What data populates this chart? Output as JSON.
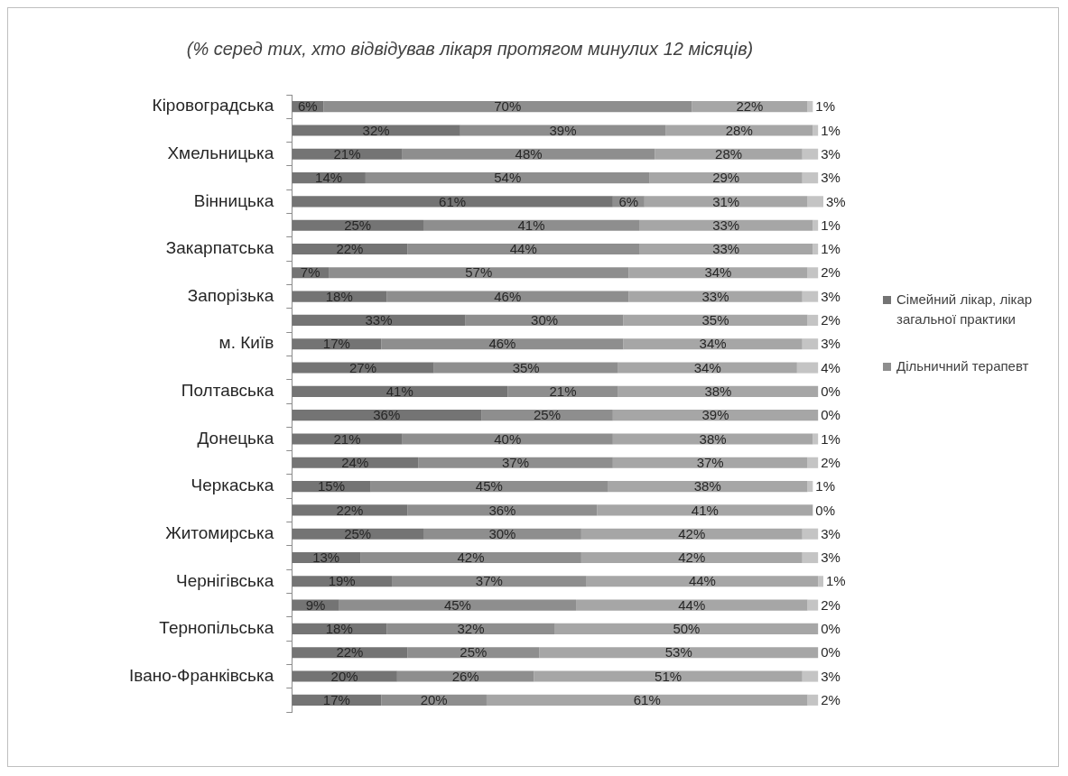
{
  "chart_data": {
    "type": "bar",
    "orientation": "horizontal",
    "stacked": true,
    "title": "(% серед тих, хто відвідував лікаря протягом минулих 12 місяців)",
    "categories": [
      "Кіровоградська",
      null,
      "Хмельницька",
      null,
      "Вінницька",
      null,
      "Закарпатська",
      null,
      "Запорізька",
      null,
      "м. Київ",
      null,
      "Полтавська",
      null,
      "Донецька",
      null,
      "Черкаська",
      null,
      "Житомирська",
      null,
      "Чернігівська",
      null,
      "Тернопільська",
      null,
      "Івано-Франківська",
      null
    ],
    "xlim": [
      0,
      101
    ],
    "tick_labels": "y",
    "grid": false,
    "legend": "right",
    "series": [
      {
        "name": "Сімейний лікар, лікар загальної практики",
        "color": "#747474",
        "values": [
          6,
          32,
          21,
          14,
          61,
          25,
          22,
          7,
          18,
          33,
          17,
          27,
          41,
          36,
          21,
          24,
          15,
          22,
          25,
          13,
          19,
          9,
          18,
          22,
          20,
          17
        ],
        "value_labels": [
          "6%",
          "32%",
          "21%",
          "14%",
          "61%",
          "25%",
          "22%",
          "7%",
          "18%",
          "33%",
          "17%",
          "27%",
          "41%",
          "36%",
          "21%",
          "24%",
          "15%",
          "22%",
          "25%",
          "13%",
          "19%",
          "9%",
          "18%",
          "22%",
          "20%",
          "17%"
        ]
      },
      {
        "name": "Дільничний терапевт",
        "color": "#8e8e8e",
        "values": [
          70,
          39,
          48,
          54,
          6,
          41,
          44,
          57,
          46,
          30,
          46,
          35,
          21,
          25,
          40,
          37,
          45,
          36,
          30,
          42,
          37,
          45,
          32,
          25,
          26,
          20
        ],
        "value_labels": [
          "70%",
          "39%",
          "48%",
          "54%",
          "6%",
          "41%",
          "44%",
          "57%",
          "46%",
          "30%",
          "46%",
          "35%",
          "21%",
          "25%",
          "40%",
          "37%",
          "45%",
          "36%",
          "30%",
          "42%",
          "37%",
          "45%",
          "32%",
          "25%",
          "26%",
          "20%"
        ]
      },
      {
        "color": "#a6a6a6",
        "values": [
          22,
          28,
          28,
          29,
          31,
          33,
          33,
          34,
          33,
          35,
          34,
          34,
          38,
          39,
          38,
          37,
          38,
          41,
          42,
          42,
          44,
          44,
          50,
          53,
          51,
          61
        ],
        "value_labels": [
          "22%",
          "28%",
          "28%",
          "29%",
          "31%",
          "33%",
          "33%",
          "34%",
          "33%",
          "35%",
          "34%",
          "34%",
          "38%",
          "39%",
          "38%",
          "37%",
          "38%",
          "41%",
          "42%",
          "42%",
          "44%",
          "44%",
          "50%",
          "53%",
          "51%",
          "61%"
        ]
      },
      {
        "color": "#c4c4c4",
        "values": [
          1,
          1,
          3,
          3,
          3,
          1,
          1,
          2,
          3,
          2,
          3,
          4,
          0,
          0,
          1,
          2,
          1,
          0,
          3,
          3,
          1,
          2,
          0,
          0,
          3,
          2
        ],
        "value_labels": [
          "1%",
          "1%",
          "3%",
          "3%",
          "3%",
          "1%",
          "1%",
          "2%",
          "3%",
          "2%",
          "3%",
          "4%",
          "0%",
          "0%",
          "1%",
          "2%",
          "1%",
          "0%",
          "3%",
          "3%",
          "1%",
          "2%",
          "0%",
          "0%",
          "3%",
          "2%"
        ]
      }
    ]
  }
}
